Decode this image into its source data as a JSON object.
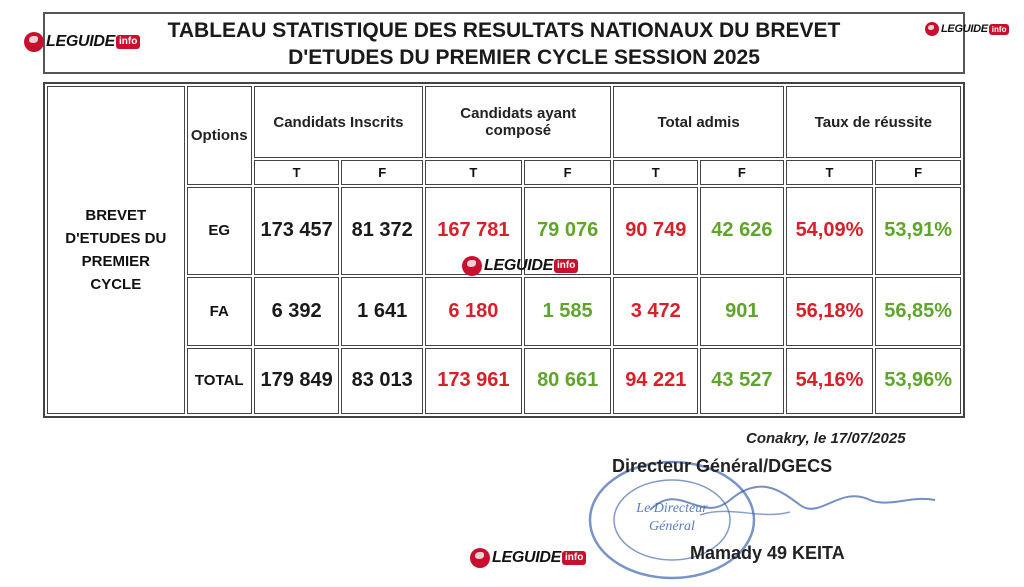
{
  "title": {
    "line1": "TABLEAU STATISTIQUE DES RESULTATS NATIONAUX  DU BREVET",
    "line2": "D'ETUDES DU PREMIER CYCLE SESSION 2025"
  },
  "watermark": {
    "word": "LEGUIDE",
    "suffix": "info"
  },
  "table": {
    "options_header": "Options",
    "groups": [
      "Candidats Inscrits",
      "Candidats ayant composé",
      "Total admis",
      "Taux de réussite"
    ],
    "subheaders": [
      "T",
      "F",
      "T",
      "F",
      "T",
      "F",
      "T",
      "F"
    ],
    "row_group_label": "BREVET D'ETUDES DU PREMIER CYCLE",
    "rows": [
      {
        "option": "EG",
        "values": [
          "173 457",
          "81 372",
          "167 781",
          "79 076",
          "90 749",
          "42 626",
          "54,09%",
          "53,91%"
        ]
      },
      {
        "option": "FA",
        "values": [
          "6 392",
          "1 641",
          "6 180",
          "1 585",
          "3 472",
          "901",
          "56,18%",
          "56,85%"
        ]
      },
      {
        "option": "TOTAL",
        "values": [
          "179 849",
          "83 013",
          "173 961",
          "80 661",
          "94 221",
          "43 527",
          "54,16%",
          "53,96%"
        ]
      }
    ]
  },
  "footer": {
    "date": "Conakry, le 17/07/2025",
    "director_title": "Directeur Général/DGECS",
    "stamp_text": "Le Directeur Général",
    "signatory": "Mamady 49 KEITA"
  },
  "colors": {
    "red": "#d8202a",
    "green": "#5fa52c",
    "brand": "#c8102e"
  }
}
